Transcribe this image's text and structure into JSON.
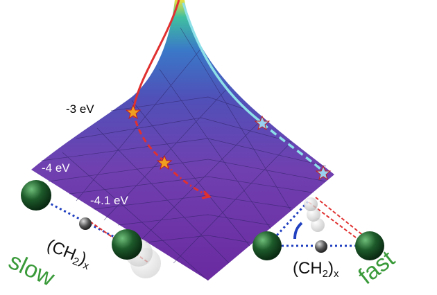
{
  "energy_labels": [
    "-3 eV",
    "-4 eV",
    "-4.1 eV"
  ],
  "left_group": {
    "formula": {
      "prefix": "(CH",
      "sub1": "2",
      "suffix": ")",
      "sub2": "x"
    },
    "speed": "slow"
  },
  "right_group": {
    "formula": {
      "prefix": "(CH",
      "sub1": "2",
      "suffix": ")",
      "sub2": "x"
    },
    "speed": "fast"
  }
}
